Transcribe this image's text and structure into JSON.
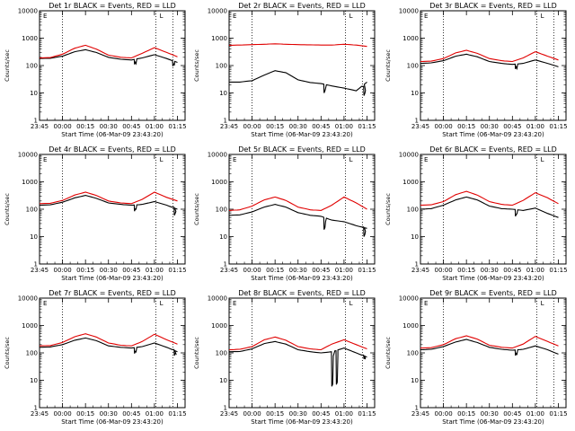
{
  "colors": {
    "events": "#000000",
    "lld": "#e00000",
    "background": "#ffffff"
  },
  "x_ticks": [
    "23:45",
    "00:00",
    "00:15",
    "00:30",
    "00:45",
    "01:00",
    "01:15"
  ],
  "y_ticks": [
    "1",
    "10",
    "100",
    "1000",
    "10000"
  ],
  "ylabel": "Counts/sec",
  "xlabel": "Start Time (06-Mar-09 23:43:20)",
  "marker_letters": [
    "E",
    "L"
  ],
  "chart_data": [
    {
      "type": "line",
      "title": "Det 1r BLACK = Events, RED = LLD",
      "xlabel": "Start Time (06-Mar-09 23:43:20)",
      "ylabel": "Counts/sec",
      "ylim": [
        1,
        10000
      ],
      "log_y": true,
      "grid": false,
      "x_minutes": [
        -15,
        -8,
        0,
        8,
        15,
        22,
        30,
        38,
        45,
        52,
        60,
        68,
        75
      ],
      "vlines_minutes": [
        0,
        61,
        72
      ],
      "series": [
        {
          "name": "Events",
          "values": [
            180,
            185,
            220,
            320,
            380,
            300,
            200,
            170,
            160,
            190,
            250,
            180,
            130
          ],
          "dips": [
            [
              47,
              110
            ],
            [
              72,
              95
            ]
          ]
        },
        {
          "name": "LLD",
          "values": [
            190,
            195,
            260,
            430,
            550,
            400,
            240,
            200,
            190,
            280,
            450,
            300,
            210
          ]
        }
      ]
    },
    {
      "type": "line",
      "title": "Det 2r BLACK = Events, RED = LLD",
      "xlabel": "Start Time (06-Mar-09 23:43:20)",
      "ylabel": "Counts/sec",
      "ylim": [
        1,
        10000
      ],
      "log_y": true,
      "grid": false,
      "x_minutes": [
        -15,
        -8,
        0,
        8,
        15,
        22,
        30,
        38,
        45,
        52,
        60,
        68,
        75
      ],
      "vlines_minutes": [
        0,
        61,
        72
      ],
      "series": [
        {
          "name": "Events",
          "values": [
            25,
            25,
            28,
            45,
            65,
            55,
            30,
            24,
            22,
            18,
            15,
            12,
            25
          ],
          "dips": [
            [
              47,
              10
            ],
            [
              73,
              8
            ]
          ]
        },
        {
          "name": "LLD",
          "values": [
            550,
            560,
            580,
            600,
            620,
            600,
            580,
            570,
            560,
            560,
            600,
            560,
            500
          ]
        }
      ]
    },
    {
      "type": "line",
      "title": "Det 3r BLACK = Events, RED = LLD",
      "xlabel": "Start Time (06-Mar-09 23:43:20)",
      "ylabel": "Counts/sec",
      "ylim": [
        1,
        10000
      ],
      "log_y": true,
      "grid": false,
      "x_minutes": [
        -15,
        -8,
        0,
        8,
        15,
        22,
        30,
        38,
        45,
        52,
        60,
        68,
        75
      ],
      "vlines_minutes": [
        0,
        61,
        72
      ],
      "series": [
        {
          "name": "Events",
          "values": [
            120,
            125,
            150,
            220,
            260,
            210,
            140,
            120,
            110,
            120,
            160,
            120,
            90
          ],
          "dips": [
            [
              47,
              75
            ]
          ]
        },
        {
          "name": "LLD",
          "values": [
            140,
            145,
            180,
            290,
            360,
            280,
            180,
            150,
            140,
            190,
            320,
            220,
            160
          ]
        }
      ]
    },
    {
      "type": "line",
      "title": "Det 4r BLACK = Events, RED = LLD",
      "xlabel": "Start Time (06-Mar-09 23:43:20)",
      "ylabel": "Counts/sec",
      "ylim": [
        1,
        10000
      ],
      "log_y": true,
      "grid": false,
      "x_minutes": [
        -15,
        -8,
        0,
        8,
        15,
        22,
        30,
        38,
        45,
        52,
        60,
        68,
        75
      ],
      "vlines_minutes": [
        0,
        61,
        72
      ],
      "series": [
        {
          "name": "Events",
          "values": [
            140,
            145,
            180,
            260,
            320,
            250,
            170,
            150,
            140,
            150,
            190,
            140,
            100
          ],
          "dips": [
            [
              47,
              85
            ],
            [
              73,
              60
            ]
          ]
        },
        {
          "name": "LLD",
          "values": [
            160,
            165,
            210,
            330,
            420,
            320,
            200,
            170,
            160,
            230,
            420,
            270,
            200
          ]
        }
      ]
    },
    {
      "type": "line",
      "title": "Det 5r BLACK = Events, RED = LLD",
      "xlabel": "Start Time (06-Mar-09 23:43:20)",
      "ylabel": "Counts/sec",
      "ylim": [
        1,
        10000
      ],
      "log_y": true,
      "grid": false,
      "x_minutes": [
        -15,
        -8,
        0,
        8,
        15,
        22,
        30,
        38,
        45,
        52,
        60,
        68,
        75
      ],
      "vlines_minutes": [
        0,
        61,
        72
      ],
      "series": [
        {
          "name": "Events",
          "values": [
            60,
            62,
            80,
            120,
            150,
            120,
            75,
            60,
            55,
            40,
            35,
            25,
            20
          ],
          "dips": [
            [
              47,
              18
            ],
            [
              73,
              10
            ]
          ]
        },
        {
          "name": "LLD",
          "values": [
            90,
            95,
            130,
            220,
            280,
            210,
            120,
            95,
            90,
            140,
            280,
            170,
            100
          ]
        }
      ]
    },
    {
      "type": "line",
      "title": "Det 6r BLACK = Events, RED = LLD",
      "xlabel": "Start Time (06-Mar-09 23:43:20)",
      "ylabel": "Counts/sec",
      "ylim": [
        1,
        10000
      ],
      "log_y": true,
      "grid": false,
      "x_minutes": [
        -15,
        -8,
        0,
        8,
        15,
        22,
        30,
        38,
        45,
        52,
        60,
        68,
        75
      ],
      "vlines_minutes": [
        0,
        61,
        72
      ],
      "series": [
        {
          "name": "Events",
          "values": [
            100,
            105,
            140,
            220,
            280,
            220,
            130,
            105,
            100,
            90,
            110,
            70,
            50
          ],
          "dips": [
            [
              47,
              55
            ]
          ]
        },
        {
          "name": "LLD",
          "values": [
            140,
            145,
            190,
            340,
            450,
            330,
            190,
            150,
            140,
            210,
            400,
            260,
            160
          ]
        }
      ]
    },
    {
      "type": "line",
      "title": "Det 7r BLACK = Events, RED = LLD",
      "xlabel": "Start Time (06-Mar-09 23:43:20)",
      "ylabel": "Counts/sec",
      "ylim": [
        1,
        10000
      ],
      "log_y": true,
      "grid": false,
      "x_minutes": [
        -15,
        -8,
        0,
        8,
        15,
        22,
        30,
        38,
        45,
        52,
        60,
        68,
        75
      ],
      "vlines_minutes": [
        0,
        61,
        72
      ],
      "series": [
        {
          "name": "Events",
          "values": [
            160,
            165,
            200,
            290,
            350,
            280,
            180,
            160,
            150,
            170,
            230,
            160,
            110
          ],
          "dips": [
            [
              47,
              95
            ],
            [
              73,
              80
            ]
          ]
        },
        {
          "name": "LLD",
          "values": [
            180,
            185,
            240,
            390,
            500,
            380,
            230,
            190,
            180,
            260,
            480,
            300,
            210
          ]
        }
      ]
    },
    {
      "type": "line",
      "title": "Det 8r BLACK = Events, RED = LLD",
      "xlabel": "Start Time (06-Mar-09 23:43:20)",
      "ylabel": "Counts/sec",
      "ylim": [
        1,
        10000
      ],
      "log_y": true,
      "grid": false,
      "x_minutes": [
        -15,
        -8,
        0,
        8,
        15,
        22,
        30,
        38,
        45,
        52,
        60,
        68,
        75
      ],
      "vlines_minutes": [
        0,
        61,
        72
      ],
      "series": [
        {
          "name": "Events",
          "values": [
            110,
            112,
            140,
            220,
            260,
            210,
            130,
            110,
            100,
            110,
            150,
            100,
            70
          ],
          "dips": [
            [
              52,
              6
            ],
            [
              55,
              7
            ],
            [
              73,
              60
            ]
          ]
        },
        {
          "name": "LLD",
          "values": [
            130,
            135,
            170,
            300,
            380,
            290,
            170,
            140,
            130,
            210,
            300,
            200,
            140
          ]
        }
      ]
    },
    {
      "type": "line",
      "title": "Det 9r BLACK = Events, RED = LLD",
      "xlabel": "Start Time (06-Mar-09 23:43:20)",
      "ylabel": "Counts/sec",
      "ylim": [
        1,
        10000
      ],
      "log_y": true,
      "grid": false,
      "x_minutes": [
        -15,
        -8,
        0,
        8,
        15,
        22,
        30,
        38,
        45,
        52,
        60,
        68,
        75
      ],
      "vlines_minutes": [
        0,
        61,
        72
      ],
      "series": [
        {
          "name": "Events",
          "values": [
            130,
            135,
            170,
            250,
            310,
            240,
            160,
            135,
            125,
            135,
            180,
            130,
            90
          ],
          "dips": [
            [
              47,
              80
            ]
          ]
        },
        {
          "name": "LLD",
          "values": [
            150,
            155,
            200,
            330,
            420,
            320,
            190,
            160,
            150,
            210,
            400,
            260,
            180
          ]
        }
      ]
    }
  ]
}
